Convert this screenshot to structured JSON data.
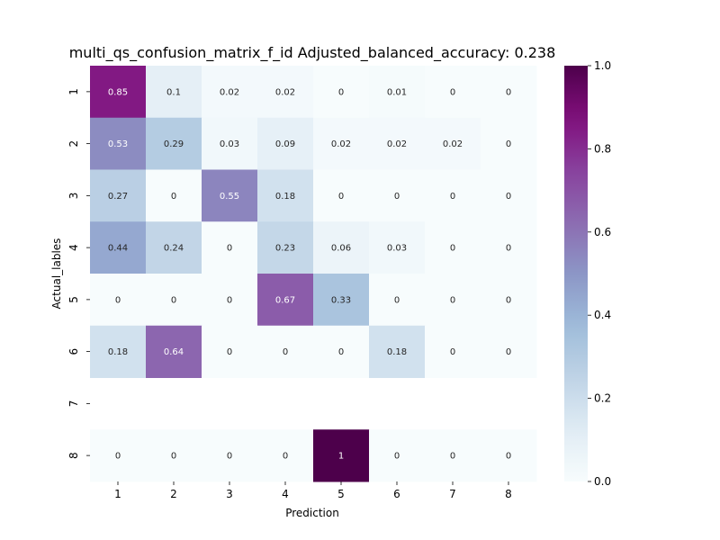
{
  "chart_data": {
    "type": "heatmap",
    "title": "multi_qs_confusion_matrix_f_id Adjusted_balanced_accuracy: 0.238",
    "xlabel": "Prediction",
    "ylabel": "Actual_lables",
    "x_categories": [
      "1",
      "2",
      "3",
      "4",
      "5",
      "6",
      "7",
      "8"
    ],
    "y_categories": [
      "1",
      "2",
      "3",
      "4",
      "5",
      "6",
      "7",
      "8"
    ],
    "values": [
      [
        0.85,
        0.1,
        0.02,
        0.02,
        0,
        0.01,
        0,
        0
      ],
      [
        0.53,
        0.29,
        0.03,
        0.09,
        0.02,
        0.02,
        0.02,
        0
      ],
      [
        0.27,
        0,
        0.55,
        0.18,
        0,
        0,
        0,
        0
      ],
      [
        0.44,
        0.24,
        0,
        0.23,
        0.06,
        0.03,
        0,
        0
      ],
      [
        0,
        0,
        0,
        0.67,
        0.33,
        0,
        0,
        0
      ],
      [
        0.18,
        0.64,
        0,
        0,
        0,
        0.18,
        0,
        0
      ],
      [
        null,
        null,
        null,
        null,
        null,
        null,
        null,
        null
      ],
      [
        0,
        0,
        0,
        0,
        1,
        0,
        0,
        0
      ]
    ],
    "colormap": "BuPu",
    "colorbar": {
      "range": [
        0.0,
        1.0
      ],
      "ticks": [
        "0.0",
        "0.2",
        "0.4",
        "0.6",
        "0.8",
        "1.0"
      ]
    }
  }
}
